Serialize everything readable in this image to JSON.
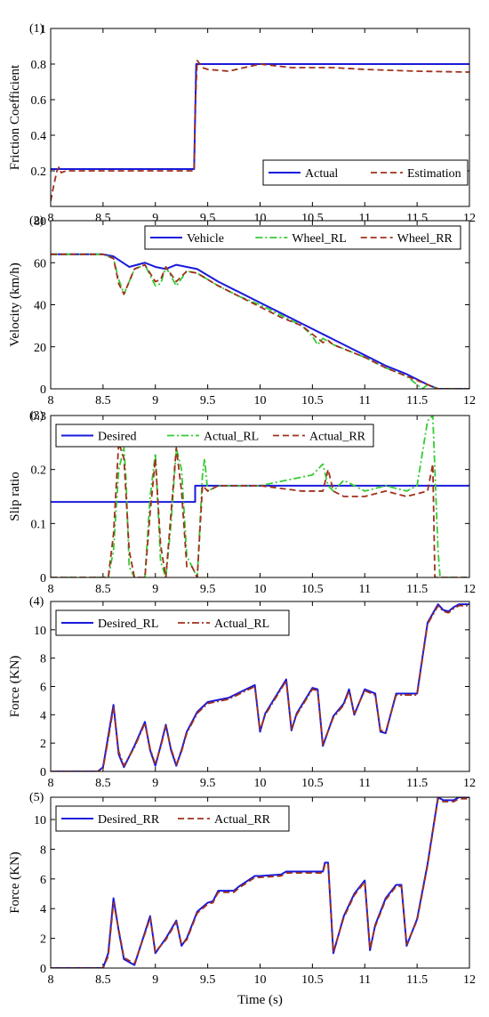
{
  "colors": {
    "blue": "#1a1adb",
    "green": "#33cc33",
    "darkred": "#a0301c",
    "shade": "#f0c8d8"
  },
  "shared_xlabel": "Time (s)",
  "chart_data": [
    {
      "type": "line",
      "id_label": "(1)",
      "xlabel": "",
      "ylabel": "Friction Coefficient",
      "xlim": [
        8,
        12
      ],
      "ylim": [
        0,
        1
      ],
      "xticks": [
        "8",
        "8.5",
        "9",
        "9.5",
        "10",
        "10.5",
        "11",
        "11.5",
        "12"
      ],
      "yticks": [
        "0.2",
        "0.4",
        "0.6",
        "0.8",
        "1"
      ],
      "show_xtick_labels": true,
      "legend_position": "bottom-right",
      "series": [
        {
          "name": "Actual",
          "style": "solid",
          "color": "blue",
          "x": [
            8,
            9.37,
            9.37,
            9.39,
            12
          ],
          "y": [
            0.21,
            0.21,
            0.21,
            0.8,
            0.8
          ]
        },
        {
          "name": "Estimation",
          "style": "dashed",
          "color": "darkred",
          "x": [
            8,
            8.03,
            8.06,
            8.08,
            8.1,
            8.15,
            8.3,
            8.6,
            9.0,
            9.37,
            9.38,
            9.4,
            9.45,
            9.5,
            9.7,
            10.0,
            10.3,
            10.7,
            11.0,
            11.5,
            12
          ],
          "y": [
            0.03,
            0.12,
            0.2,
            0.22,
            0.19,
            0.2,
            0.2,
            0.2,
            0.2,
            0.2,
            0.55,
            0.82,
            0.78,
            0.77,
            0.76,
            0.8,
            0.78,
            0.78,
            0.77,
            0.76,
            0.755
          ]
        }
      ]
    },
    {
      "type": "line",
      "id_label": "(2)",
      "xlabel": "",
      "ylabel": "Velocity (km/h)",
      "xlim": [
        8,
        12
      ],
      "ylim": [
        0,
        80
      ],
      "xticks": [
        "8",
        "8.5",
        "9",
        "9.5",
        "10",
        "10.5",
        "11",
        "11.5",
        "12"
      ],
      "yticks": [
        "0",
        "20",
        "40",
        "60",
        "80"
      ],
      "show_xtick_labels": true,
      "legend_position": "top-right",
      "series": [
        {
          "name": "Vehicle",
          "style": "solid",
          "color": "blue",
          "x": [
            8,
            8.5,
            8.6,
            8.75,
            8.9,
            9.0,
            9.1,
            9.2,
            9.4,
            9.6,
            9.8,
            10.0,
            10.2,
            10.4,
            10.6,
            10.8,
            11.0,
            11.2,
            11.4,
            11.6,
            11.7,
            12
          ],
          "y": [
            64,
            64,
            63,
            58,
            60,
            58,
            57,
            59,
            57,
            51,
            46,
            41,
            36,
            31,
            26,
            21,
            16,
            11,
            7,
            2,
            0,
            0
          ]
        },
        {
          "name": "Wheel_RL",
          "style": "dashdot",
          "color": "green",
          "x": [
            8,
            8.5,
            8.6,
            8.65,
            8.7,
            8.8,
            8.9,
            9.0,
            9.05,
            9.1,
            9.2,
            9.3,
            9.4,
            9.6,
            9.8,
            10.0,
            10.2,
            10.4,
            10.5,
            10.55,
            10.6,
            10.7,
            10.8,
            11.0,
            11.2,
            11.4,
            11.5,
            11.55,
            11.6,
            11.7,
            12
          ],
          "y": [
            64,
            64,
            62,
            52,
            45,
            57,
            59,
            49,
            50,
            58,
            49,
            56,
            55,
            49,
            44,
            40,
            35,
            30,
            25,
            21,
            24,
            21,
            19,
            15,
            10,
            6,
            2,
            0,
            2,
            0,
            0
          ]
        },
        {
          "name": "Wheel_RR",
          "style": "dashed",
          "color": "darkred",
          "x": [
            8,
            8.5,
            8.6,
            8.65,
            8.7,
            8.8,
            8.9,
            9.0,
            9.05,
            9.1,
            9.2,
            9.3,
            9.4,
            9.6,
            9.8,
            10.0,
            10.2,
            10.4,
            10.6,
            10.65,
            10.7,
            10.8,
            11.0,
            11.2,
            11.4,
            11.6,
            11.7,
            12
          ],
          "y": [
            64,
            64,
            62,
            50,
            45,
            57,
            59,
            51,
            52,
            58,
            51,
            56,
            55,
            49,
            44,
            39,
            34,
            30,
            22,
            23,
            21,
            19,
            15,
            10,
            6,
            2,
            0,
            0
          ]
        }
      ]
    },
    {
      "type": "line",
      "id_label": "(3)",
      "xlabel": "",
      "ylabel": "Slip ratio",
      "xlim": [
        8,
        12
      ],
      "ylim": [
        0,
        0.3
      ],
      "xticks": [
        "8",
        "8.5",
        "9",
        "9.5",
        "10",
        "10.5",
        "11",
        "11.5",
        "12"
      ],
      "yticks": [
        "0",
        "0.1",
        "0.2",
        "0.3"
      ],
      "show_xtick_labels": true,
      "legend_position": "top",
      "series": [
        {
          "name": "Desired",
          "style": "solid",
          "color": "blue",
          "x": [
            8,
            9.38,
            9.38,
            12
          ],
          "y": [
            0.14,
            0.14,
            0.17,
            0.17
          ]
        },
        {
          "name": "Actual_RL",
          "style": "dashdot",
          "color": "green",
          "x": [
            8,
            8.55,
            8.6,
            8.65,
            8.7,
            8.72,
            8.75,
            8.8,
            8.9,
            8.95,
            9.0,
            9.02,
            9.05,
            9.1,
            9.15,
            9.2,
            9.25,
            9.3,
            9.35,
            9.4,
            9.45,
            9.47,
            9.5,
            9.6,
            10.0,
            10.5,
            10.6,
            10.65,
            10.7,
            10.8,
            11.0,
            11.2,
            11.4,
            11.5,
            11.6,
            11.65,
            11.7,
            11.72,
            12
          ],
          "y": [
            0,
            0,
            0.05,
            0.2,
            0.24,
            0.18,
            0.02,
            0,
            0,
            0.15,
            0.23,
            0.15,
            0.03,
            0,
            0.1,
            0.24,
            0.2,
            0.04,
            0.02,
            0,
            0.19,
            0.22,
            0.16,
            0.17,
            0.17,
            0.19,
            0.21,
            0.17,
            0.16,
            0.18,
            0.16,
            0.17,
            0.16,
            0.17,
            0.29,
            0.3,
            0.05,
            0,
            0
          ]
        },
        {
          "name": "Actual_RR",
          "style": "dashed",
          "color": "darkred",
          "x": [
            8,
            8.55,
            8.6,
            8.65,
            8.7,
            8.75,
            8.8,
            8.9,
            8.95,
            9.0,
            9.05,
            9.1,
            9.15,
            9.2,
            9.25,
            9.3,
            9.35,
            9.4,
            9.45,
            9.5,
            9.6,
            10.0,
            10.4,
            10.6,
            10.65,
            10.7,
            10.8,
            11.0,
            11.2,
            11.4,
            11.6,
            11.65,
            11.67,
            12
          ],
          "y": [
            0,
            0,
            0.08,
            0.25,
            0.22,
            0.05,
            0,
            0,
            0.12,
            0.22,
            0.06,
            0,
            0.12,
            0.24,
            0.16,
            0.02,
            0.02,
            0,
            0.17,
            0.16,
            0.17,
            0.17,
            0.16,
            0.16,
            0.2,
            0.16,
            0.15,
            0.15,
            0.16,
            0.15,
            0.16,
            0.21,
            0,
            0
          ]
        }
      ]
    },
    {
      "type": "line",
      "id_label": "(4)",
      "xlabel": "",
      "ylabel": "Force (KN)",
      "xlim": [
        8,
        12
      ],
      "ylim": [
        0,
        12
      ],
      "xticks": [
        "8",
        "8.5",
        "9",
        "9.5",
        "10",
        "10.5",
        "11",
        "11.5",
        "12"
      ],
      "yticks": [
        "0",
        "2",
        "4",
        "6",
        "8",
        "10"
      ],
      "show_xtick_labels": true,
      "legend_position": "top-left",
      "series": [
        {
          "name": "Desired_RL",
          "style": "solid",
          "color": "blue",
          "x": [
            8,
            8.45,
            8.5,
            8.55,
            8.6,
            8.65,
            8.7,
            8.8,
            8.9,
            8.95,
            9.0,
            9.05,
            9.1,
            9.15,
            9.2,
            9.25,
            9.3,
            9.4,
            9.5,
            9.7,
            9.95,
            10.0,
            10.05,
            10.15,
            10.25,
            10.3,
            10.35,
            10.5,
            10.55,
            10.6,
            10.7,
            10.8,
            10.85,
            10.9,
            11.0,
            11.1,
            11.15,
            11.2,
            11.3,
            11.35,
            11.4,
            11.5,
            11.6,
            11.7,
            11.75,
            11.8,
            11.85,
            11.9,
            12
          ],
          "y": [
            0,
            0,
            0.3,
            2.5,
            4.7,
            1.2,
            0.3,
            1.8,
            3.5,
            1.5,
            0.4,
            1.8,
            3.3,
            1.5,
            0.4,
            1.5,
            2.8,
            4.2,
            4.9,
            5.2,
            6.1,
            2.8,
            4.1,
            5.3,
            6.5,
            2.9,
            4.1,
            5.9,
            5.8,
            1.8,
            3.9,
            4.8,
            5.8,
            4.0,
            5.8,
            5.5,
            2.8,
            2.7,
            5.5,
            5.5,
            5.5,
            5.5,
            10.5,
            11.8,
            11.4,
            11.3,
            11.6,
            11.8,
            11.8
          ]
        },
        {
          "name": "Actual_RL",
          "style": "dashdot",
          "color": "darkred",
          "x": [
            8,
            8.45,
            8.5,
            8.55,
            8.6,
            8.65,
            8.7,
            8.8,
            8.9,
            8.95,
            9.0,
            9.05,
            9.1,
            9.15,
            9.2,
            9.25,
            9.3,
            9.4,
            9.5,
            9.7,
            9.95,
            10.0,
            10.05,
            10.15,
            10.25,
            10.3,
            10.35,
            10.5,
            10.55,
            10.6,
            10.7,
            10.8,
            10.85,
            10.9,
            11.0,
            11.1,
            11.15,
            11.2,
            11.3,
            11.35,
            11.4,
            11.5,
            11.6,
            11.7,
            11.75,
            11.8,
            11.85,
            11.9,
            12
          ],
          "y": [
            0,
            0,
            0.2,
            2.3,
            4.5,
            1.4,
            0.4,
            1.7,
            3.4,
            1.6,
            0.5,
            1.7,
            3.2,
            1.6,
            0.5,
            1.4,
            2.7,
            4.1,
            4.8,
            5.1,
            6.0,
            2.9,
            4.0,
            5.2,
            6.4,
            3.0,
            4.0,
            5.8,
            5.7,
            1.9,
            3.8,
            4.7,
            5.7,
            4.1,
            5.7,
            5.4,
            2.9,
            2.8,
            5.4,
            5.4,
            5.4,
            5.4,
            10.4,
            11.7,
            11.3,
            11.2,
            11.5,
            11.7,
            11.7
          ]
        }
      ]
    },
    {
      "type": "line",
      "id_label": "(5)",
      "xlabel": "Time (s)",
      "ylabel": "Force (KN)",
      "xlim": [
        8,
        12
      ],
      "ylim": [
        0,
        11.5
      ],
      "xticks": [
        "8",
        "8.5",
        "9",
        "9.5",
        "10",
        "10.5",
        "11",
        "11.5",
        "12"
      ],
      "yticks": [
        "0",
        "2",
        "4",
        "6",
        "8",
        "10"
      ],
      "show_xtick_labels": true,
      "legend_position": "top-left",
      "series": [
        {
          "name": "Desired_RR",
          "style": "solid",
          "color": "blue",
          "x": [
            8,
            8.5,
            8.55,
            8.6,
            8.65,
            8.7,
            8.8,
            8.9,
            8.95,
            9.0,
            9.1,
            9.2,
            9.25,
            9.3,
            9.4,
            9.5,
            9.55,
            9.6,
            9.75,
            9.8,
            9.95,
            10.0,
            10.2,
            10.25,
            10.6,
            10.62,
            10.65,
            10.7,
            10.8,
            10.9,
            11.0,
            11.05,
            11.1,
            11.2,
            11.3,
            11.35,
            11.4,
            11.5,
            11.6,
            11.7,
            11.75,
            11.85,
            11.9,
            12
          ],
          "y": [
            0,
            0,
            1.0,
            4.7,
            2.5,
            0.6,
            0.2,
            2.4,
            3.5,
            1.0,
            2.0,
            3.2,
            1.5,
            2.0,
            3.8,
            4.4,
            4.5,
            5.2,
            5.2,
            5.5,
            6.2,
            6.2,
            6.3,
            6.5,
            6.5,
            7.1,
            7.1,
            1.0,
            3.5,
            5.0,
            5.9,
            1.2,
            2.9,
            4.7,
            5.6,
            5.6,
            1.5,
            3.3,
            7.0,
            11.5,
            11.3,
            11.3,
            11.5,
            11.5
          ]
        },
        {
          "name": "Actual_RR",
          "style": "dashed",
          "color": "darkred",
          "x": [
            8,
            8.5,
            8.55,
            8.6,
            8.65,
            8.7,
            8.8,
            8.9,
            8.95,
            9.0,
            9.1,
            9.2,
            9.25,
            9.3,
            9.4,
            9.5,
            9.55,
            9.6,
            9.75,
            9.8,
            9.95,
            10.0,
            10.2,
            10.25,
            10.6,
            10.62,
            10.65,
            10.7,
            10.8,
            10.9,
            11.0,
            11.05,
            11.1,
            11.2,
            11.3,
            11.35,
            11.4,
            11.5,
            11.6,
            11.7,
            11.75,
            11.85,
            11.9,
            12
          ],
          "y": [
            0,
            0,
            0.8,
            4.4,
            2.6,
            0.7,
            0.3,
            2.3,
            3.4,
            1.1,
            1.9,
            3.1,
            1.6,
            1.9,
            3.7,
            4.3,
            4.4,
            5.1,
            5.1,
            5.4,
            6.1,
            6.1,
            6.2,
            6.4,
            6.4,
            7.0,
            7.0,
            1.1,
            3.4,
            4.9,
            5.8,
            1.3,
            2.8,
            4.6,
            5.5,
            5.5,
            1.6,
            3.2,
            6.9,
            11.4,
            11.2,
            11.2,
            11.4,
            11.4
          ]
        }
      ]
    }
  ]
}
